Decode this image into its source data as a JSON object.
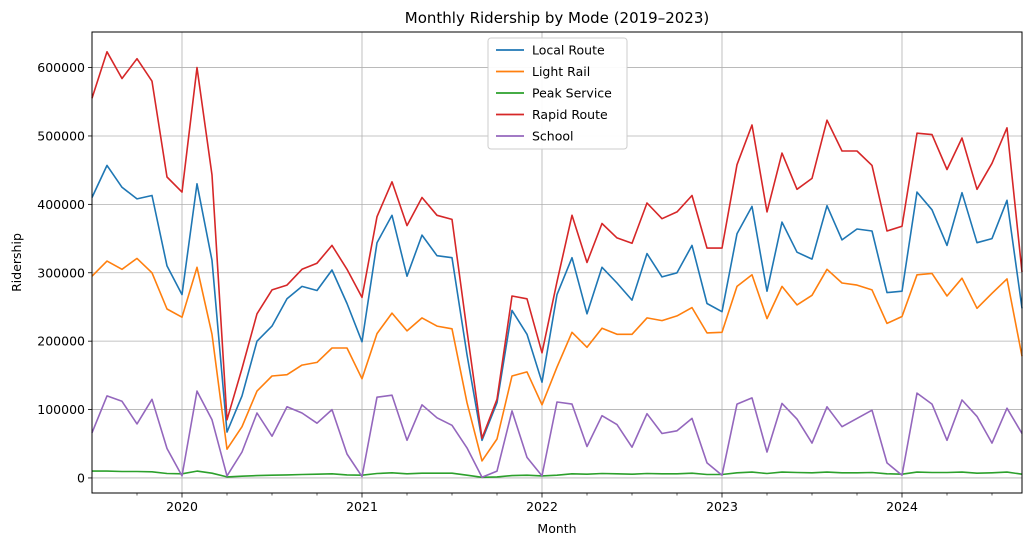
{
  "chart_data": {
    "type": "line",
    "title": "Monthly Ridership by Mode (2019–2023)",
    "xlabel": "Month",
    "ylabel": "Ridership",
    "x_start": "2019-07",
    "x_ticks": [
      "2020",
      "2021",
      "2022",
      "2023",
      "2024"
    ],
    "y_ticks": [
      "0",
      "100000",
      "200000",
      "300000",
      "400000",
      "500000",
      "600000"
    ],
    "ylim": [
      -22000,
      652000
    ],
    "grid": true,
    "legend_position": "top-center",
    "x": [
      "2019-07",
      "2019-08",
      "2019-09",
      "2019-10",
      "2019-11",
      "2019-12",
      "2020-01",
      "2020-02",
      "2020-03",
      "2020-04",
      "2020-05",
      "2020-06",
      "2020-07",
      "2020-08",
      "2020-09",
      "2020-10",
      "2020-11",
      "2020-12",
      "2021-01",
      "2021-02",
      "2021-03",
      "2021-04",
      "2021-05",
      "2021-06",
      "2021-07",
      "2021-08",
      "2021-09",
      "2021-10",
      "2021-11",
      "2021-12",
      "2022-01",
      "2022-02",
      "2022-03",
      "2022-04",
      "2022-05",
      "2022-06",
      "2022-07",
      "2022-08",
      "2022-09",
      "2022-10",
      "2022-11",
      "2022-12",
      "2023-01",
      "2023-02",
      "2023-03",
      "2023-04",
      "2023-05",
      "2023-06",
      "2023-07",
      "2023-08",
      "2023-09",
      "2023-10",
      "2023-11",
      "2023-12",
      "2024-01",
      "2024-02",
      "2024-03",
      "2024-04",
      "2024-05",
      "2024-06",
      "2024-07",
      "2024-08",
      "2024-09"
    ],
    "series": [
      {
        "name": "Local Route",
        "color": "#1f77b4",
        "values": [
          410000,
          457000,
          425000,
          408000,
          413000,
          310000,
          268000,
          430000,
          318000,
          67000,
          120000,
          200000,
          222000,
          262000,
          280000,
          274000,
          304000,
          255000,
          199000,
          344000,
          384000,
          295000,
          355000,
          325000,
          322000,
          180000,
          55000,
          110000,
          245000,
          210000,
          140000,
          268000,
          322000,
          240000,
          308000,
          285000,
          260000,
          328000,
          294000,
          300000,
          340000,
          255000,
          243000,
          357000,
          397000,
          273000,
          374000,
          330000,
          320000,
          398000,
          348000,
          364000,
          361000,
          271000,
          273000,
          418000,
          392000,
          340000,
          417000,
          344000,
          350000,
          406000,
          248000
        ]
      },
      {
        "name": "Light Rail",
        "color": "#ff7f0e",
        "values": [
          295000,
          317000,
          305000,
          321000,
          300000,
          247000,
          235000,
          308000,
          210000,
          42000,
          75000,
          127000,
          149000,
          151000,
          165000,
          169000,
          190000,
          190000,
          145000,
          211000,
          241000,
          215000,
          234000,
          222000,
          218000,
          110000,
          25000,
          57000,
          149000,
          155000,
          107000,
          162000,
          213000,
          191000,
          219000,
          210000,
          210000,
          234000,
          230000,
          237000,
          249000,
          212000,
          213000,
          280000,
          297000,
          233000,
          280000,
          253000,
          267000,
          305000,
          285000,
          282000,
          275000,
          226000,
          236000,
          297000,
          299000,
          266000,
          292000,
          248000,
          270000,
          291000,
          178000
        ]
      },
      {
        "name": "Peak Service",
        "color": "#2ca02c",
        "values": [
          10000,
          10000,
          9500,
          9500,
          9000,
          6500,
          6000,
          10000,
          7000,
          1500,
          2500,
          3500,
          4000,
          4500,
          5000,
          5500,
          6000,
          4500,
          4000,
          6500,
          7500,
          6000,
          7000,
          7000,
          7000,
          4000,
          1000,
          1500,
          3500,
          4000,
          3000,
          4000,
          6000,
          5500,
          6500,
          6000,
          5500,
          6500,
          6000,
          6000,
          7000,
          5000,
          5000,
          7500,
          8500,
          6500,
          8500,
          8000,
          7500,
          8500,
          7500,
          7500,
          8000,
          6000,
          5500,
          8500,
          8000,
          8000,
          8500,
          7000,
          7500,
          8500,
          5500
        ]
      },
      {
        "name": "Rapid Route",
        "color": "#d62728",
        "values": [
          555000,
          623000,
          584000,
          613000,
          580000,
          440000,
          418000,
          600000,
          443000,
          85000,
          160000,
          240000,
          275000,
          282000,
          305000,
          314000,
          340000,
          305000,
          264000,
          382000,
          433000,
          369000,
          410000,
          384000,
          378000,
          215000,
          58000,
          115000,
          266000,
          262000,
          183000,
          287000,
          384000,
          315000,
          372000,
          351000,
          343000,
          402000,
          379000,
          389000,
          413000,
          336000,
          336000,
          458000,
          516000,
          389000,
          475000,
          422000,
          438000,
          523000,
          478000,
          478000,
          457000,
          361000,
          368000,
          504000,
          502000,
          451000,
          497000,
          422000,
          460000,
          512000,
          301000
        ]
      },
      {
        "name": "School",
        "color": "#9467bd",
        "values": [
          66000,
          120000,
          112000,
          79000,
          115000,
          43000,
          3000,
          127000,
          85000,
          3000,
          38000,
          95000,
          61000,
          104000,
          95000,
          80000,
          100000,
          35000,
          2000,
          118000,
          121000,
          55000,
          107000,
          88000,
          77000,
          44000,
          1000,
          10000,
          98000,
          30000,
          3000,
          111000,
          108000,
          46000,
          91000,
          78000,
          45000,
          94000,
          65000,
          69000,
          87000,
          22000,
          4000,
          108000,
          117000,
          38000,
          109000,
          86000,
          51000,
          104000,
          75000,
          87000,
          99000,
          22000,
          4000,
          124000,
          108000,
          55000,
          114000,
          90000,
          51000,
          102000,
          65000
        ]
      }
    ]
  }
}
